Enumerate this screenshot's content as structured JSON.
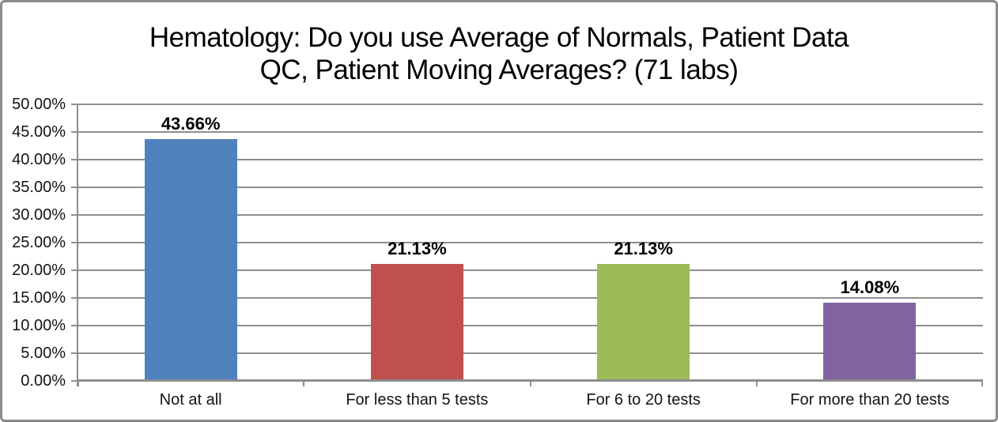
{
  "chart_data": {
    "type": "bar",
    "title": "Hematology: Do you use Average of Normals, Patient Data QC, Patient Moving Averages? (71 labs)",
    "title_lines": [
      "Hematology: Do you use Average of Normals, Patient Data",
      "QC, Patient Moving Averages? (71 labs)"
    ],
    "categories": [
      "Not at all",
      "For less than 5 tests",
      "For 6 to 20 tests",
      "For more than 20 tests"
    ],
    "values": [
      43.66,
      21.13,
      21.13,
      14.08
    ],
    "value_labels": [
      "43.66%",
      "21.13%",
      "21.13%",
      "14.08%"
    ],
    "bar_colors": [
      "#4F81BD",
      "#C0504D",
      "#9BBB59",
      "#8064A2"
    ],
    "ytick_labels": [
      "0.00%",
      "5.00%",
      "10.00%",
      "15.00%",
      "20.00%",
      "25.00%",
      "30.00%",
      "35.00%",
      "40.00%",
      "45.00%",
      "50.00%"
    ],
    "ylim": [
      0,
      50
    ],
    "ytick_step": 5,
    "xlabel": "",
    "ylabel": "",
    "grid": true,
    "legend_position": "none",
    "colors": {
      "grid": "#8E8E8E",
      "axis": "#8E8E8E",
      "text": "#000000",
      "frame_border": "#8A8A8A",
      "background": "#FFFFFF"
    }
  }
}
